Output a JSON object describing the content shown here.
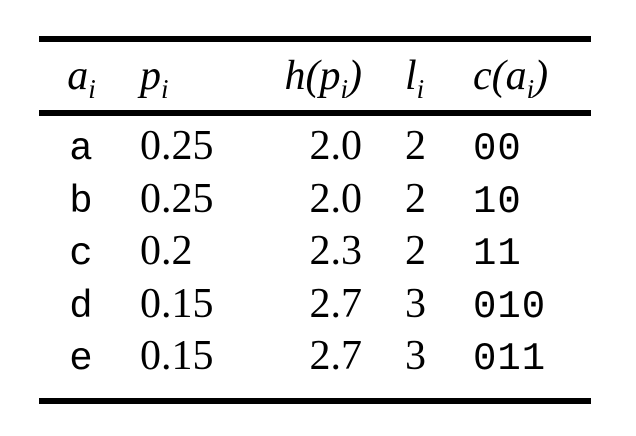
{
  "table": {
    "description": "Source coding table with per-symbol probability, information content, code length and codeword",
    "headers": [
      {
        "pre": "a",
        "sub": "i",
        "post": ""
      },
      {
        "pre": "p",
        "sub": "i",
        "post": ""
      },
      {
        "pre": "h(p",
        "sub": "i",
        "post": ")"
      },
      {
        "pre": "l",
        "sub": "i",
        "post": ""
      },
      {
        "pre": "c(a",
        "sub": "i",
        "post": ")"
      }
    ],
    "rows": [
      {
        "symbol": "a",
        "p": "0.25",
        "h": "2.0",
        "l": "2",
        "code": "00"
      },
      {
        "symbol": "b",
        "p": "0.25",
        "h": "2.0",
        "l": "2",
        "code": "10"
      },
      {
        "symbol": "c",
        "p": "0.2",
        "h": "2.3",
        "l": "2",
        "code": "11"
      },
      {
        "symbol": "d",
        "p": "0.15",
        "h": "2.7",
        "l": "3",
        "code": "010"
      },
      {
        "symbol": "e",
        "p": "0.15",
        "h": "2.7",
        "l": "3",
        "code": "011"
      }
    ]
  },
  "chart_data": {
    "type": "table",
    "title": "",
    "columns": [
      "a_i",
      "p_i",
      "h(p_i)",
      "l_i",
      "c(a_i)"
    ],
    "rows": [
      [
        "a",
        0.25,
        2.0,
        2,
        "00"
      ],
      [
        "b",
        0.25,
        2.0,
        2,
        "10"
      ],
      [
        "c",
        0.2,
        2.3,
        2,
        "11"
      ],
      [
        "d",
        0.15,
        2.7,
        3,
        "010"
      ],
      [
        "e",
        0.15,
        2.7,
        3,
        "011"
      ]
    ]
  },
  "colors": {
    "background": "#ffffff",
    "text": "#000000",
    "rule": "#000000"
  }
}
